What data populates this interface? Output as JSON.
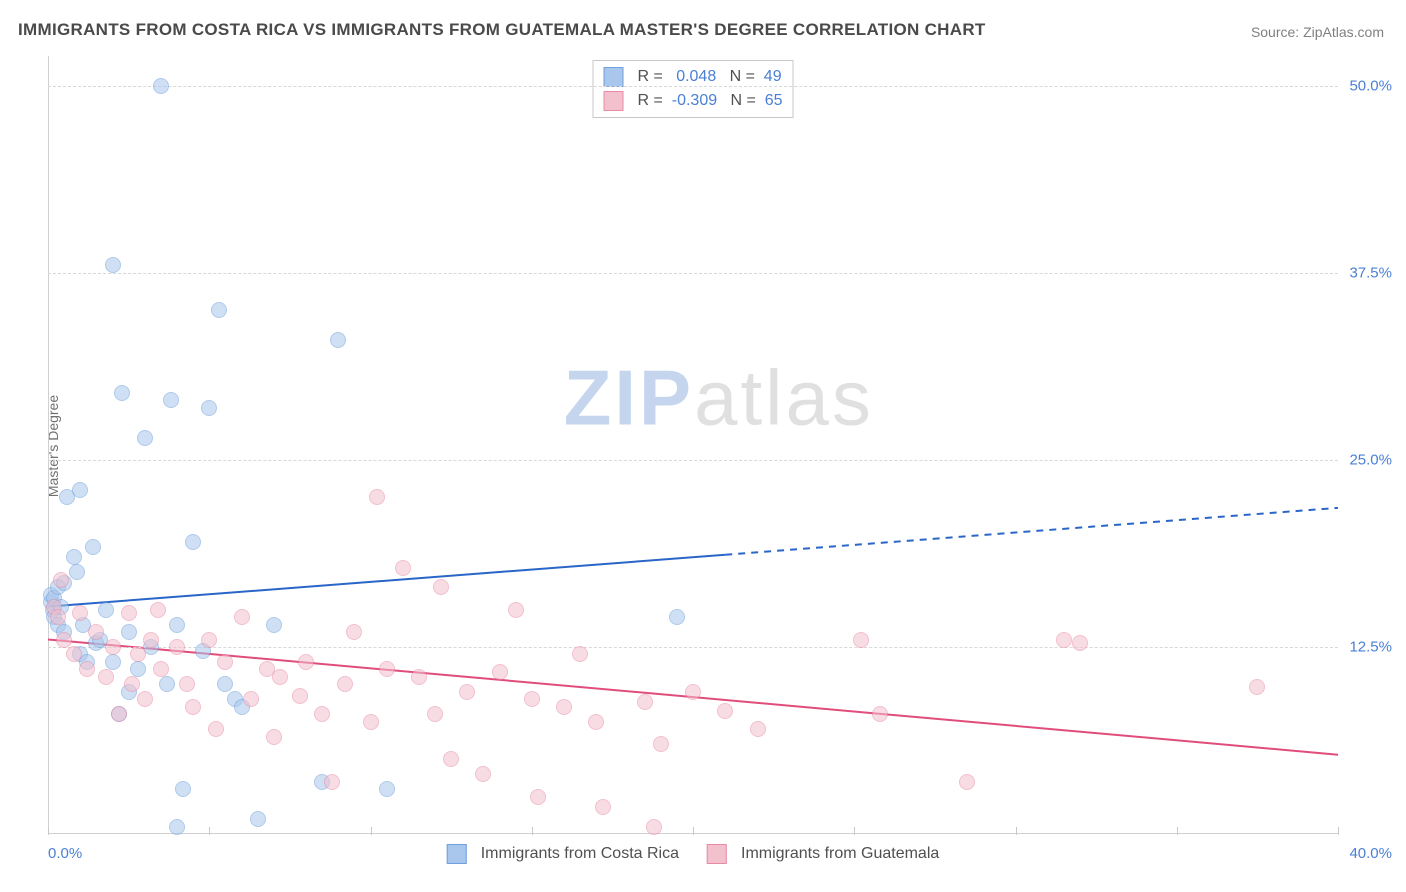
{
  "title": "IMMIGRANTS FROM COSTA RICA VS IMMIGRANTS FROM GUATEMALA MASTER'S DEGREE CORRELATION CHART",
  "source_prefix": "Source: ",
  "source_name": "ZipAtlas.com",
  "ylabel": "Master's Degree",
  "watermark": {
    "part1": "ZIP",
    "part2": "atlas"
  },
  "chart": {
    "type": "scatter",
    "xlim": [
      0,
      40
    ],
    "ylim": [
      0,
      52
    ],
    "x_axis": {
      "label_left": "0.0%",
      "label_right": "40.0%",
      "tick_positions": [
        0,
        5,
        10,
        15,
        20,
        25,
        30,
        35,
        40
      ]
    },
    "y_axis": {
      "ticks": [
        {
          "value": 12.5,
          "label": "12.5%"
        },
        {
          "value": 25.0,
          "label": "25.0%"
        },
        {
          "value": 37.5,
          "label": "37.5%"
        },
        {
          "value": 50.0,
          "label": "50.0%"
        }
      ]
    },
    "grid_color": "#d8d8d8",
    "background_color": "#ffffff",
    "marker_radius": 8,
    "marker_opacity": 0.55,
    "series": [
      {
        "name": "Immigrants from Costa Rica",
        "color_fill": "#a9c7ec",
        "color_stroke": "#6f9fdc",
        "trend_color": "#2a66c8",
        "trend_width": 2,
        "trend": {
          "x1": 0,
          "y1": 15.2,
          "x2": 40,
          "y2": 21.8,
          "solid_until_x": 21
        },
        "stats": {
          "R": "0.048",
          "N": "49"
        },
        "points": [
          [
            0.1,
            15.5
          ],
          [
            0.1,
            16.0
          ],
          [
            0.15,
            15.0
          ],
          [
            0.2,
            14.5
          ],
          [
            0.2,
            15.8
          ],
          [
            0.3,
            16.5
          ],
          [
            0.3,
            14.0
          ],
          [
            0.4,
            15.2
          ],
          [
            0.5,
            16.8
          ],
          [
            0.5,
            13.5
          ],
          [
            0.6,
            22.5
          ],
          [
            0.8,
            18.5
          ],
          [
            0.9,
            17.5
          ],
          [
            1.0,
            23.0
          ],
          [
            1.0,
            12.0
          ],
          [
            1.1,
            14.0
          ],
          [
            1.2,
            11.5
          ],
          [
            1.4,
            19.2
          ],
          [
            1.5,
            12.8
          ],
          [
            1.6,
            13.0
          ],
          [
            1.8,
            15.0
          ],
          [
            2.0,
            38.0
          ],
          [
            2.0,
            11.5
          ],
          [
            2.2,
            8.0
          ],
          [
            2.3,
            29.5
          ],
          [
            2.5,
            9.5
          ],
          [
            2.5,
            13.5
          ],
          [
            2.8,
            11.0
          ],
          [
            3.0,
            26.5
          ],
          [
            3.2,
            12.5
          ],
          [
            3.5,
            50.0
          ],
          [
            3.7,
            10.0
          ],
          [
            3.8,
            29.0
          ],
          [
            4.0,
            14.0
          ],
          [
            4.0,
            0.5
          ],
          [
            4.2,
            3.0
          ],
          [
            4.5,
            19.5
          ],
          [
            4.8,
            12.2
          ],
          [
            5.0,
            28.5
          ],
          [
            5.3,
            35.0
          ],
          [
            5.5,
            10.0
          ],
          [
            5.8,
            9.0
          ],
          [
            6.5,
            1.0
          ],
          [
            7.0,
            14.0
          ],
          [
            8.5,
            3.5
          ],
          [
            9.0,
            33.0
          ],
          [
            10.5,
            3.0
          ],
          [
            19.5,
            14.5
          ],
          [
            6.0,
            8.5
          ]
        ]
      },
      {
        "name": "Immigrants from Guatemala",
        "color_fill": "#f3c0ce",
        "color_stroke": "#e88ba6",
        "trend_color": "#e14d7b",
        "trend_width": 2,
        "trend": {
          "x1": 0,
          "y1": 13.0,
          "x2": 40,
          "y2": 5.3,
          "solid_until_x": 40
        },
        "stats": {
          "R": "-0.309",
          "N": "65"
        },
        "points": [
          [
            0.2,
            15.2
          ],
          [
            0.3,
            14.5
          ],
          [
            0.4,
            17.0
          ],
          [
            0.5,
            13.0
          ],
          [
            0.8,
            12.0
          ],
          [
            1.0,
            14.8
          ],
          [
            1.2,
            11.0
          ],
          [
            1.5,
            13.5
          ],
          [
            1.8,
            10.5
          ],
          [
            2.0,
            12.5
          ],
          [
            2.2,
            8.0
          ],
          [
            2.5,
            14.8
          ],
          [
            2.6,
            10.0
          ],
          [
            2.8,
            12.0
          ],
          [
            3.0,
            9.0
          ],
          [
            3.2,
            13.0
          ],
          [
            3.4,
            15.0
          ],
          [
            3.5,
            11.0
          ],
          [
            4.0,
            12.5
          ],
          [
            4.3,
            10.0
          ],
          [
            4.5,
            8.5
          ],
          [
            5.0,
            13.0
          ],
          [
            5.2,
            7.0
          ],
          [
            5.5,
            11.5
          ],
          [
            6.0,
            14.5
          ],
          [
            6.3,
            9.0
          ],
          [
            6.8,
            11.0
          ],
          [
            7.0,
            6.5
          ],
          [
            7.2,
            10.5
          ],
          [
            7.8,
            9.2
          ],
          [
            8.0,
            11.5
          ],
          [
            8.5,
            8.0
          ],
          [
            8.8,
            3.5
          ],
          [
            9.2,
            10.0
          ],
          [
            9.5,
            13.5
          ],
          [
            10.0,
            7.5
          ],
          [
            10.2,
            22.5
          ],
          [
            10.5,
            11.0
          ],
          [
            11.0,
            17.8
          ],
          [
            11.5,
            10.5
          ],
          [
            12.0,
            8.0
          ],
          [
            12.2,
            16.5
          ],
          [
            12.5,
            5.0
          ],
          [
            13.0,
            9.5
          ],
          [
            13.5,
            4.0
          ],
          [
            14.0,
            10.8
          ],
          [
            14.5,
            15.0
          ],
          [
            15.0,
            9.0
          ],
          [
            15.2,
            2.5
          ],
          [
            16.0,
            8.5
          ],
          [
            16.5,
            12.0
          ],
          [
            17.0,
            7.5
          ],
          [
            17.2,
            1.8
          ],
          [
            18.5,
            8.8
          ],
          [
            18.8,
            0.5
          ],
          [
            20.0,
            9.5
          ],
          [
            21.0,
            8.2
          ],
          [
            22.0,
            7.0
          ],
          [
            25.2,
            13.0
          ],
          [
            25.8,
            8.0
          ],
          [
            28.5,
            3.5
          ],
          [
            31.5,
            13.0
          ],
          [
            32.0,
            12.8
          ],
          [
            37.5,
            9.8
          ],
          [
            19.0,
            6.0
          ]
        ]
      }
    ]
  },
  "stats_legend": {
    "R_label": "R =",
    "N_label": "N ="
  }
}
